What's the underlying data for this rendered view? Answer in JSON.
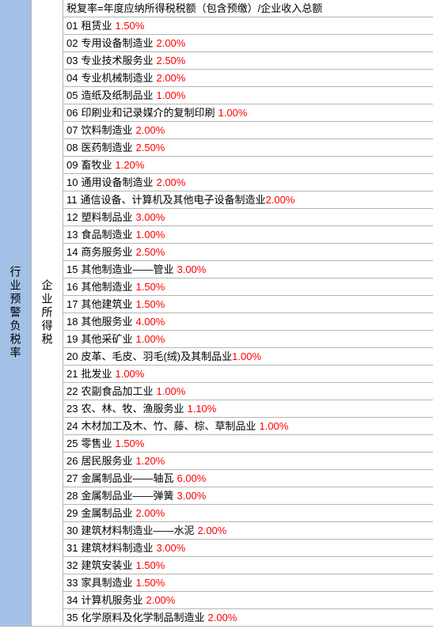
{
  "leftColumnLabel": "行业预警负税率",
  "midColumnLabel": "企业所得税",
  "headerText": "税复率=年度应纳所得税税额（包含预缴）/企业收入总额",
  "rateColor": "#ff0000",
  "textColor": "#000000",
  "leftBgColor": "#a3c1e6",
  "borderColor": "#b5b5b5",
  "rows": [
    {
      "num": "01",
      "label": "租赁业",
      "rate": "1.50%",
      "space": true
    },
    {
      "num": "02",
      "label": "专用设备制造业",
      "rate": "2.00%",
      "space": true
    },
    {
      "num": "03",
      "label": "专业技术服务业",
      "rate": "2.50%",
      "space": true
    },
    {
      "num": "04",
      "label": "专业机械制造业",
      "rate": "2.00%",
      "space": true
    },
    {
      "num": "05",
      "label": "造纸及纸制品业",
      "rate": "1.00%",
      "space": true
    },
    {
      "num": "06",
      "label": "印刷业和记录媒介的复制印刷",
      "rate": "1.00%",
      "space": true
    },
    {
      "num": "07",
      "label": "饮料制造业",
      "rate": "2.00%",
      "space": true
    },
    {
      "num": "08",
      "label": "医药制造业",
      "rate": "2.50%",
      "space": true
    },
    {
      "num": "09",
      "label": "畜牧业",
      "rate": "1.20%",
      "space": true
    },
    {
      "num": "10",
      "label": "通用设备制造业",
      "rate": "2.00%",
      "space": true
    },
    {
      "num": "11",
      "label": "通信设备、计算机及其他电子设备制造业",
      "rate": "2.00%",
      "space": false
    },
    {
      "num": "12",
      "label": "塑料制品业",
      "rate": "3.00%",
      "space": true
    },
    {
      "num": "13",
      "label": "食品制造业",
      "rate": "1.00%",
      "space": true
    },
    {
      "num": "14",
      "label": "商务服务业",
      "rate": "2.50%",
      "space": true
    },
    {
      "num": "15",
      "label": "其他制造业——管业",
      "rate": "3.00%",
      "space": true
    },
    {
      "num": "16",
      "label": "其他制造业",
      "rate": "1.50%",
      "space": true
    },
    {
      "num": "17",
      "label": "其他建筑业",
      "rate": "1.50%",
      "space": true
    },
    {
      "num": "18",
      "label": "其他服务业",
      "rate": "4.00%",
      "space": true
    },
    {
      "num": "19",
      "label": "其他采矿业",
      "rate": "1.00%",
      "space": true
    },
    {
      "num": "20",
      "label": "皮革、毛皮、羽毛(绒)及其制品业",
      "rate": "1.00%",
      "space": false
    },
    {
      "num": "21",
      "label": "批发业",
      "rate": "1.00%",
      "space": true
    },
    {
      "num": "22",
      "label": "农副食品加工业",
      "rate": "1.00%",
      "space": true
    },
    {
      "num": "23",
      "label": "农、林、牧、渔服务业",
      "rate": "1.10%",
      "space": true
    },
    {
      "num": "24",
      "label": "木材加工及木、竹、藤、棕、草制品业",
      "rate": "1.00%",
      "space": true
    },
    {
      "num": "25",
      "label": "零售业",
      "rate": "1.50%",
      "space": true
    },
    {
      "num": "26",
      "label": "居民服务业",
      "rate": "1.20%",
      "space": true
    },
    {
      "num": "27",
      "label": "金属制品业——轴瓦",
      "rate": "6.00%",
      "space": true
    },
    {
      "num": "28",
      "label": "金属制品业——弹簧",
      "rate": "3.00%",
      "space": true
    },
    {
      "num": "29",
      "label": "金属制品业",
      "rate": "2.00%",
      "space": true
    },
    {
      "num": "30",
      "label": "建筑材料制造业——水泥",
      "rate": "2.00%",
      "space": true
    },
    {
      "num": "31",
      "label": "建筑材料制造业",
      "rate": "3.00%",
      "space": true
    },
    {
      "num": "32",
      "label": "建筑安装业",
      "rate": "1.50%",
      "space": true
    },
    {
      "num": "33",
      "label": "家具制造业",
      "rate": "1.50%",
      "space": true
    },
    {
      "num": "34",
      "label": "计算机服务业",
      "rate": "2.00%",
      "space": true
    },
    {
      "num": "35",
      "label": "化学原料及化学制品制造业",
      "rate": "2.00%",
      "space": true
    }
  ]
}
